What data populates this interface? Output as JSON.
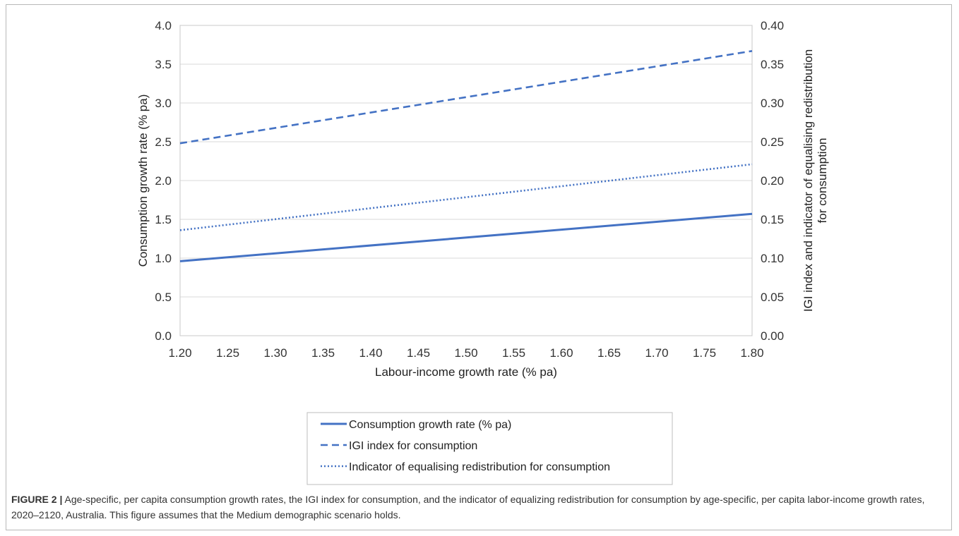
{
  "chart_data": {
    "type": "line",
    "xlabel": "Labour-income growth rate (% pa)",
    "ylabel": "Consumption growth rate (% pa)",
    "y2label_line1": "IGI index and indicator of equalising redistribution",
    "y2label_line2": "for consumption",
    "xlim": [
      1.2,
      1.8
    ],
    "ylim": [
      0.0,
      4.0
    ],
    "y2lim": [
      0.0,
      0.4
    ],
    "x_ticks": [
      "1.20",
      "1.25",
      "1.30",
      "1.35",
      "1.40",
      "1.45",
      "1.50",
      "1.55",
      "1.60",
      "1.65",
      "1.70",
      "1.75",
      "1.80"
    ],
    "y_ticks": [
      "0.0",
      "0.5",
      "1.0",
      "1.5",
      "2.0",
      "2.5",
      "3.0",
      "3.5",
      "4.0"
    ],
    "y2_ticks": [
      "0.00",
      "0.05",
      "0.10",
      "0.15",
      "0.20",
      "0.25",
      "0.30",
      "0.35",
      "0.40"
    ],
    "grid": "horizontal",
    "legend_position": "bottom",
    "series": [
      {
        "name": "Consumption growth rate (% pa)",
        "axis": "left",
        "style": "solid",
        "color": "#4472c4",
        "x": [
          1.2,
          1.8
        ],
        "values": [
          0.96,
          1.57
        ]
      },
      {
        "name": "IGI index for consumption",
        "axis": "right",
        "style": "dashed",
        "color": "#4472c4",
        "x": [
          1.2,
          1.8
        ],
        "values": [
          0.248,
          0.367
        ]
      },
      {
        "name": "Indicator of equalising redistribution for consumption",
        "axis": "right",
        "style": "dotted",
        "color": "#4472c4",
        "x": [
          1.2,
          1.8
        ],
        "values": [
          0.136,
          0.221
        ]
      }
    ]
  },
  "caption": {
    "label": "FIGURE 2 |",
    "text": " Age-specific, per capita consumption growth rates, the IGI index for consumption, and the indicator of equalizing redistribution for consumption by age-specific, per capita labor-income growth rates, 2020–2120, Australia. This figure assumes that the Medium demographic scenario holds."
  }
}
